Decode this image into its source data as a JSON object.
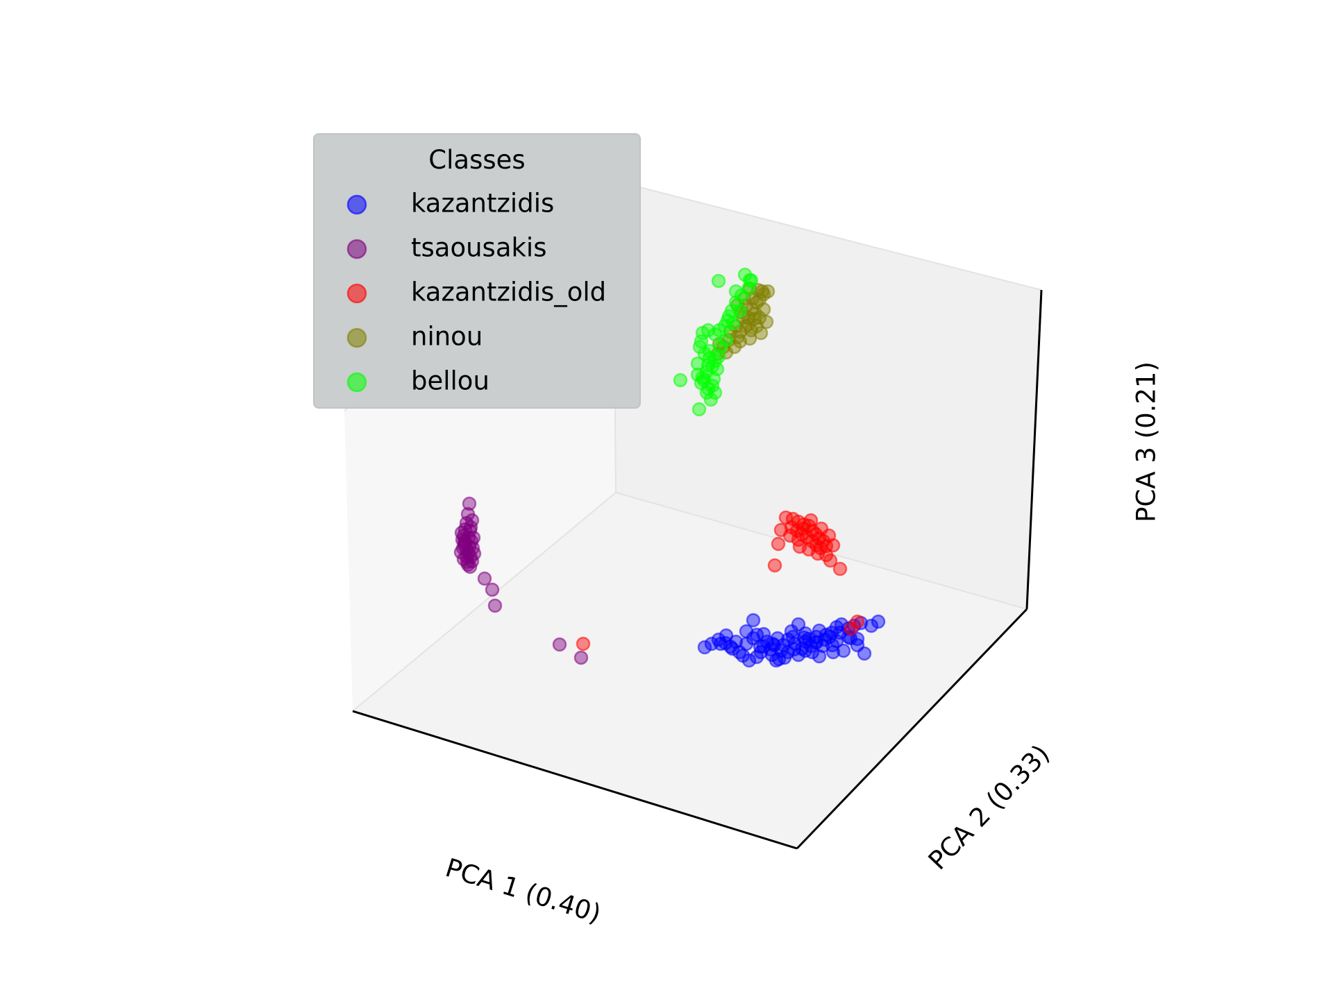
{
  "chart_data": {
    "type": "scatter",
    "projection": "3d",
    "grid": false,
    "xlabel": "PCA 1 (0.40)",
    "ylabel": "PCA 2 (0.33)",
    "zlabel": "PCA 3 (0.21)",
    "legend": {
      "title": "Classes",
      "placement": "top-left"
    },
    "series": [
      {
        "name": "kazantzidis",
        "color": "#0000ff",
        "points": [
          [
            1015,
            933
          ],
          [
            1025,
            928
          ],
          [
            1035,
            922
          ],
          [
            1045,
            927
          ],
          [
            1055,
            935
          ],
          [
            1065,
            940
          ],
          [
            1075,
            928
          ],
          [
            1085,
            920
          ],
          [
            1095,
            932
          ],
          [
            1105,
            925
          ],
          [
            1115,
            930
          ],
          [
            1125,
            938
          ],
          [
            1135,
            922
          ],
          [
            1145,
            928
          ],
          [
            1155,
            935
          ],
          [
            1165,
            921
          ],
          [
            1175,
            926
          ],
          [
            1185,
            931
          ],
          [
            1195,
            918
          ],
          [
            1205,
            924
          ],
          [
            1215,
            938
          ],
          [
            1225,
            920
          ],
          [
            1235,
            930
          ],
          [
            1245,
            942
          ],
          [
            1100,
            914
          ],
          [
            1140,
            910
          ],
          [
            1160,
            913
          ],
          [
            1180,
            909
          ],
          [
            1190,
            915
          ],
          [
            1170,
            940
          ],
          [
            1150,
            944
          ],
          [
            1130,
            948
          ],
          [
            1112,
            944
          ],
          [
            1118,
            952
          ],
          [
            1120,
            920
          ],
          [
            1142,
            918
          ],
          [
            1160,
            925
          ],
          [
            1176,
            918
          ],
          [
            1200,
            940
          ],
          [
            1210,
            912
          ],
          [
            1230,
            902
          ],
          [
            1255,
            902
          ],
          [
            1265,
            896
          ],
          [
            1075,
            910
          ],
          [
            1085,
            894
          ],
          [
            1240,
            898
          ],
          [
            1070,
            945
          ],
          [
            1090,
            915
          ],
          [
            1150,
            900
          ],
          [
            1205,
            904
          ],
          [
            1222,
            906
          ],
          [
            1188,
            922
          ],
          [
            1096,
            940
          ],
          [
            1128,
            930
          ],
          [
            1160,
            938
          ],
          [
            1100,
            932
          ],
          [
            1110,
            936
          ],
          [
            1180,
            946
          ],
          [
            1198,
            912
          ],
          [
            1144,
            936
          ],
          [
            1060,
            925
          ],
          [
            1052,
            932
          ],
          [
            1079,
            952
          ],
          [
            1090,
            947
          ],
          [
            1122,
            950
          ],
          [
            1113,
            928
          ],
          [
            1135,
            940
          ],
          [
            1168,
            931
          ],
          [
            1176,
            926
          ],
          [
            1199,
            930
          ],
          [
            1212,
            900
          ],
          [
            1222,
            918
          ],
          [
            1235,
            921
          ],
          [
            1158,
            919
          ],
          [
            1046,
            916
          ],
          [
            1038,
            928
          ]
        ]
      },
      {
        "name": "tsaousakis",
        "color": "#800080",
        "points": [
          [
            676,
            726
          ],
          [
            674,
            741
          ],
          [
            672,
            754
          ],
          [
            670,
            763
          ],
          [
            668,
            772
          ],
          [
            666,
            778
          ],
          [
            669,
            786
          ],
          [
            672,
            792
          ],
          [
            675,
            798
          ],
          [
            678,
            803
          ],
          [
            680,
            809
          ],
          [
            674,
            814
          ],
          [
            672,
            802
          ],
          [
            675,
            775
          ],
          [
            677,
            765
          ],
          [
            670,
            782
          ],
          [
            665,
            768
          ],
          [
            681,
            790
          ],
          [
            664,
            796
          ],
          [
            679,
            780
          ],
          [
            673,
            810
          ],
          [
            677,
            817
          ],
          [
            668,
            806
          ],
          [
            683,
            798
          ],
          [
            682,
            775
          ],
          [
            667,
            790
          ],
          [
            678,
            760
          ],
          [
            680,
            750
          ],
          [
            669,
            780
          ],
          [
            676,
            788
          ],
          [
            698,
            834
          ],
          [
            709,
            850
          ],
          [
            713,
            873
          ],
          [
            806,
            929
          ],
          [
            837,
            948
          ]
        ]
      },
      {
        "name": "kazantzidis_old",
        "color": "#ff0000",
        "points": [
          [
            1132,
            746
          ],
          [
            1142,
            748
          ],
          [
            1150,
            752
          ],
          [
            1158,
            756
          ],
          [
            1165,
            758
          ],
          [
            1170,
            765
          ],
          [
            1175,
            770
          ],
          [
            1180,
            776
          ],
          [
            1186,
            780
          ],
          [
            1190,
            787
          ],
          [
            1140,
            760
          ],
          [
            1148,
            765
          ],
          [
            1155,
            770
          ],
          [
            1162,
            774
          ],
          [
            1170,
            780
          ],
          [
            1176,
            786
          ],
          [
            1182,
            790
          ],
          [
            1150,
            778
          ],
          [
            1165,
            792
          ],
          [
            1178,
            798
          ],
          [
            1190,
            800
          ],
          [
            1196,
            808
          ],
          [
            1125,
            764
          ],
          [
            1138,
            772
          ],
          [
            1157,
            762
          ],
          [
            1168,
            750
          ],
          [
            1183,
            762
          ],
          [
            1194,
            772
          ],
          [
            1200,
            786
          ],
          [
            1152,
            788
          ],
          [
            1210,
            820
          ],
          [
            1121,
            784
          ],
          [
            1116,
            815
          ],
          [
            1226,
            906
          ],
          [
            1235,
            896
          ],
          [
            840,
            928
          ]
        ]
      },
      {
        "name": "ninou",
        "color": "#808000",
        "points": [
          [
            1072,
            430
          ],
          [
            1075,
            440
          ],
          [
            1083,
            446
          ],
          [
            1088,
            452
          ],
          [
            1094,
            458
          ],
          [
            1100,
            446
          ],
          [
            1104,
            464
          ],
          [
            1090,
            470
          ],
          [
            1082,
            476
          ],
          [
            1074,
            470
          ],
          [
            1066,
            478
          ],
          [
            1062,
            486
          ],
          [
            1080,
            488
          ],
          [
            1096,
            480
          ],
          [
            1086,
            460
          ],
          [
            1060,
            470
          ],
          [
            1050,
            490
          ],
          [
            1042,
            500
          ],
          [
            1034,
            510
          ],
          [
            1052,
            478
          ],
          [
            1070,
            458
          ],
          [
            1058,
            500
          ],
          [
            1066,
            492
          ],
          [
            1078,
            468
          ],
          [
            1080,
            416
          ],
          [
            1092,
            418
          ],
          [
            1098,
            420
          ],
          [
            1078,
            458
          ],
          [
            1068,
            450
          ],
          [
            1062,
            440
          ],
          [
            1106,
            420
          ],
          [
            1084,
            430
          ],
          [
            1090,
            436
          ],
          [
            1100,
            424
          ],
          [
            1094,
            432
          ],
          [
            1046,
            508
          ],
          [
            1036,
            496
          ]
        ]
      },
      {
        "name": "bellou",
        "color": "#00ff00",
        "points": [
          [
            1035,
            405
          ],
          [
            1073,
            396
          ],
          [
            1080,
            404
          ],
          [
            1078,
            416
          ],
          [
            1060,
            436
          ],
          [
            1054,
            448
          ],
          [
            1050,
            456
          ],
          [
            1048,
            462
          ],
          [
            1044,
            470
          ],
          [
            1036,
            476
          ],
          [
            1030,
            482
          ],
          [
            1020,
            476
          ],
          [
            1012,
            480
          ],
          [
            1010,
            492
          ],
          [
            1008,
            500
          ],
          [
            1015,
            510
          ],
          [
            1022,
            516
          ],
          [
            1030,
            520
          ],
          [
            1020,
            526
          ],
          [
            1018,
            536
          ],
          [
            1012,
            544
          ],
          [
            1010,
            552
          ],
          [
            1020,
            560
          ],
          [
            1030,
            566
          ],
          [
            1024,
            576
          ],
          [
            1014,
            548
          ],
          [
            1005,
            524
          ],
          [
            1005,
            540
          ],
          [
            1022,
            506
          ],
          [
            1028,
            546
          ],
          [
            1026,
            528
          ],
          [
            1033,
            532
          ],
          [
            1026,
            556
          ],
          [
            1018,
            566
          ],
          [
            1035,
            514
          ],
          [
            1038,
            500
          ],
          [
            1046,
            490
          ],
          [
            1056,
            466
          ],
          [
            1066,
            448
          ],
          [
            1068,
            426
          ],
          [
            1082,
            404
          ],
          [
            1060,
            420
          ],
          [
            980,
            548
          ],
          [
            1007,
            590
          ]
        ]
      }
    ]
  }
}
